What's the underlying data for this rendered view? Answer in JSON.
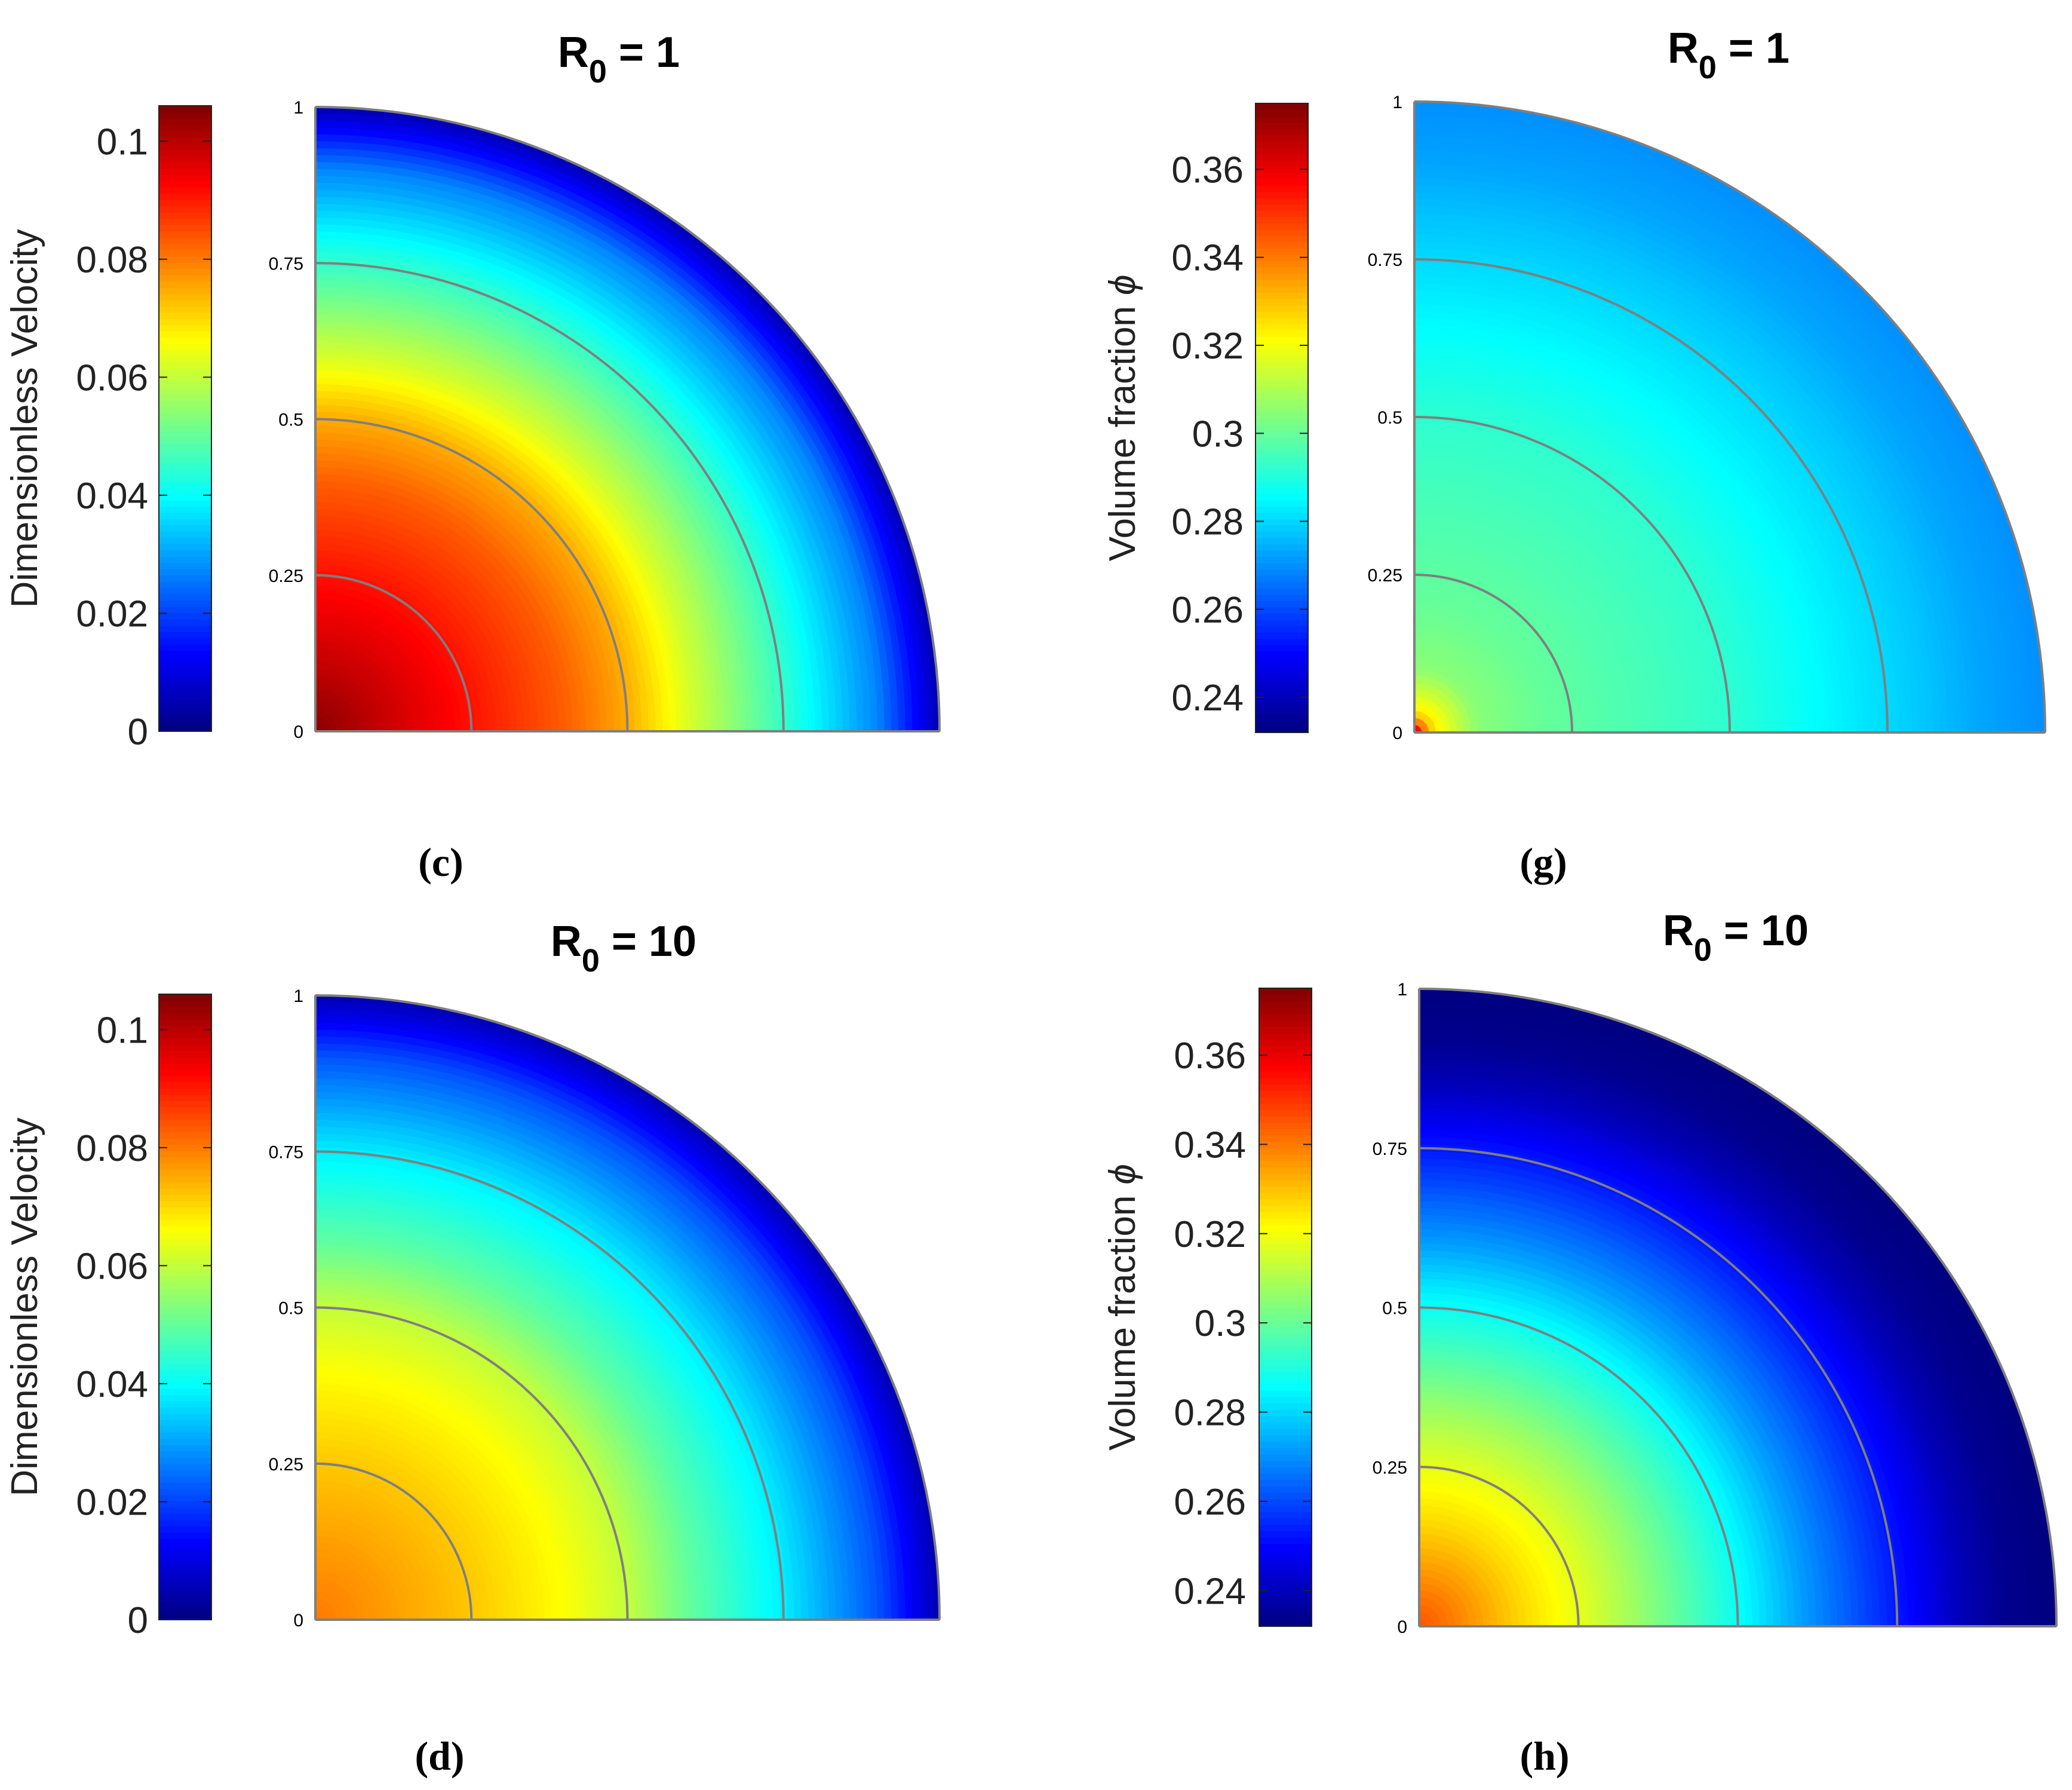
{
  "chart_data": [
    {
      "type": "heatmap",
      "panel": "(c)",
      "title_main": "R",
      "title_sub": "0",
      "title_rest": " = 1",
      "colorbar_label": "Dimensionless Velocity",
      "colorbar_ticks": [
        "0",
        "0.02",
        "0.04",
        "0.06",
        "0.08",
        "0.1"
      ],
      "colorbar_tick_values": [
        0,
        0.02,
        0.04,
        0.06,
        0.08,
        0.1
      ],
      "colorbar_range": [
        0,
        0.106
      ],
      "radial_ticks": [
        "0",
        "0.25",
        "0.5",
        "0.75",
        "1"
      ],
      "radial_tick_values": [
        0,
        0.25,
        0.5,
        0.75,
        1
      ],
      "radial_range": [
        0,
        1
      ],
      "colormap": "jet",
      "profile": {
        "r": [
          0,
          0.1,
          0.25,
          0.4,
          0.5,
          0.6,
          0.75,
          0.9,
          1.0
        ],
        "value": [
          0.105,
          0.099,
          0.091,
          0.083,
          0.075,
          0.062,
          0.045,
          0.027,
          0.005
        ]
      }
    },
    {
      "type": "heatmap",
      "panel": "(g)",
      "title_main": "R",
      "title_sub": "0",
      "title_rest": " = 1",
      "colorbar_label": "Volume fraction",
      "colorbar_symbol": "ϕ",
      "colorbar_ticks": [
        "0.24",
        "0.26",
        "0.28",
        "0.3",
        "0.32",
        "0.34",
        "0.36"
      ],
      "colorbar_tick_values": [
        0.24,
        0.26,
        0.28,
        0.3,
        0.32,
        0.34,
        0.36
      ],
      "colorbar_range": [
        0.232,
        0.375
      ],
      "radial_ticks": [
        "0",
        "0.25",
        "0.5",
        "0.75",
        "1"
      ],
      "radial_tick_values": [
        0,
        0.25,
        0.5,
        0.75,
        1
      ],
      "radial_range": [
        0,
        1
      ],
      "colormap": "jet",
      "profile": {
        "r": [
          0,
          0.01,
          0.03,
          0.06,
          0.1,
          0.2,
          0.35,
          0.5,
          0.65,
          0.8,
          0.9,
          1.0
        ],
        "value": [
          0.37,
          0.345,
          0.325,
          0.315,
          0.305,
          0.3,
          0.296,
          0.292,
          0.285,
          0.278,
          0.273,
          0.27
        ]
      }
    },
    {
      "type": "heatmap",
      "panel": "(d)",
      "title_main": "R",
      "title_sub": "0",
      "title_rest": " = 10",
      "colorbar_label": "Dimensionless Velocity",
      "colorbar_ticks": [
        "0",
        "0.02",
        "0.04",
        "0.06",
        "0.08",
        "0.1"
      ],
      "colorbar_tick_values": [
        0,
        0.02,
        0.04,
        0.06,
        0.08,
        0.1
      ],
      "colorbar_range": [
        0,
        0.106
      ],
      "radial_ticks": [
        "0",
        "0.25",
        "0.5",
        "0.75",
        "1"
      ],
      "radial_tick_values": [
        0,
        0.25,
        0.5,
        0.75,
        1
      ],
      "radial_range": [
        0,
        1
      ],
      "colormap": "jet",
      "profile": {
        "r": [
          0,
          0.1,
          0.25,
          0.4,
          0.5,
          0.6,
          0.75,
          0.9,
          1.0
        ],
        "value": [
          0.08,
          0.077,
          0.072,
          0.066,
          0.06,
          0.05,
          0.038,
          0.022,
          0.005
        ]
      }
    },
    {
      "type": "heatmap",
      "panel": "(h)",
      "title_main": "R",
      "title_sub": "0",
      "title_rest": " = 10",
      "colorbar_label": "Volume fraction",
      "colorbar_symbol": "ϕ",
      "colorbar_ticks": [
        "0.24",
        "0.26",
        "0.28",
        "0.3",
        "0.32",
        "0.34",
        "0.36"
      ],
      "colorbar_tick_values": [
        0.24,
        0.26,
        0.28,
        0.3,
        0.32,
        0.34,
        0.36
      ],
      "colorbar_range": [
        0.232,
        0.375
      ],
      "radial_ticks": [
        "0",
        "0.25",
        "0.5",
        "0.75",
        "1"
      ],
      "radial_tick_values": [
        0,
        0.25,
        0.5,
        0.75,
        1
      ],
      "radial_range": [
        0,
        1
      ],
      "colormap": "jet",
      "profile": {
        "r": [
          0,
          0.05,
          0.15,
          0.25,
          0.35,
          0.5,
          0.6,
          0.75,
          0.85,
          0.92,
          1.0
        ],
        "value": [
          0.345,
          0.34,
          0.328,
          0.318,
          0.306,
          0.287,
          0.272,
          0.253,
          0.24,
          0.234,
          0.232
        ]
      }
    }
  ],
  "colors": {
    "contour_line": "#7f7f7f",
    "background": "#ffffff"
  }
}
